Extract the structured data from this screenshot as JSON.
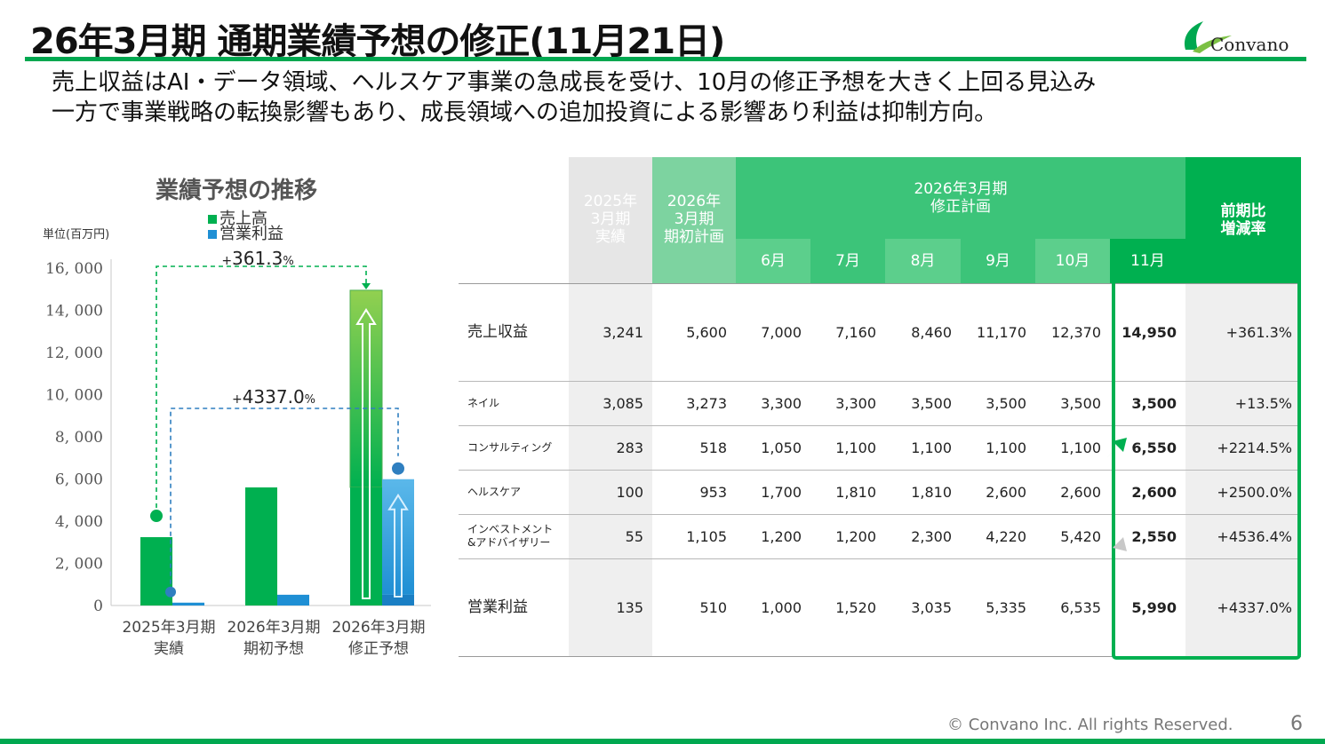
{
  "header": {
    "title": "26年3月期 通期業績予想の修正(11月21日)",
    "logo_text": "Convano"
  },
  "lead": {
    "line1": "売上収益はAI・データ領域、ヘルスケア事業の急成長を受け、10月の修正予想を大きく上回る見込み",
    "line2": "一方で事業戦略の転換影響もあり、成長領域への追加投資による影響あり利益は抑制方向。"
  },
  "chart_data": {
    "type": "bar",
    "title": "業績予想の推移",
    "unit_label": "単位(百万円)",
    "legend": [
      "売上高",
      "営業利益"
    ],
    "categories": [
      {
        "line1": "2025年3月期",
        "line2": "実績"
      },
      {
        "line1": "2026年3月期",
        "line2": "期初予想"
      },
      {
        "line1": "2026年3月期",
        "line2": "修正予想"
      }
    ],
    "series": [
      {
        "name": "売上高",
        "values": [
          3241,
          5600,
          14950
        ]
      },
      {
        "name": "営業利益",
        "values": [
          135,
          510,
          5990
        ]
      }
    ],
    "initial_portion": {
      "売上高": 5600,
      "営業利益": 510
    },
    "yticks": [
      "16, 000",
      "14, 000",
      "12, 000",
      "10, 000",
      "8, 000",
      "6, 000",
      "4, 000",
      "2, 000",
      "0"
    ],
    "ylim": [
      0,
      16000
    ],
    "annotations": {
      "revenue_growth_prefix": "+",
      "revenue_growth_value": "361.3",
      "revenue_growth_suffix": "%",
      "profit_growth_prefix": "+",
      "profit_growth_value": "4337.0",
      "profit_growth_suffix": "%"
    },
    "colors": {
      "revenue": "#00b050",
      "revenue_light": "#92d050",
      "profit": "#1f8fd4",
      "profit_light": "#5bb8ea",
      "revenue_connector": "#00b050",
      "profit_connector": "#2f7fc0"
    }
  },
  "table": {
    "header": {
      "actual_2025": "2025年\n3月期\n実績",
      "initial_2026": "2026年\n3月期\n期初計画",
      "revised_group": "2026年3月期\n修正計画",
      "months": [
        "6月",
        "7月",
        "8月",
        "9月",
        "10月",
        "11月"
      ],
      "yoy": "前期比\n増減率"
    },
    "rows": [
      {
        "label": "売上収益",
        "values": [
          "3,241",
          "5,600",
          "7,000",
          "7,160",
          "8,460",
          "11,170",
          "12,370",
          "14,950",
          "+361.3%"
        ]
      },
      {
        "label": "ネイル",
        "values": [
          "3,085",
          "3,273",
          "3,300",
          "3,300",
          "3,500",
          "3,500",
          "3,500",
          "3,500",
          "+13.5%"
        ]
      },
      {
        "label": "コンサルティング",
        "values": [
          "283",
          "518",
          "1,050",
          "1,100",
          "1,100",
          "1,100",
          "1,100",
          "6,550",
          "+2214.5%"
        ]
      },
      {
        "label": "ヘルスケア",
        "values": [
          "100",
          "953",
          "1,700",
          "1,810",
          "1,810",
          "2,600",
          "2,600",
          "2,600",
          "+2500.0%"
        ]
      },
      {
        "label": "インベストメント\n&アドバイザリー",
        "values": [
          "55",
          "1,105",
          "1,200",
          "1,200",
          "2,300",
          "4,220",
          "5,420",
          "2,550",
          "+4536.4%"
        ]
      },
      {
        "label": "営業利益",
        "values": [
          "135",
          "510",
          "1,000",
          "1,520",
          "3,035",
          "5,335",
          "6,535",
          "5,990",
          "+4337.0%"
        ]
      }
    ],
    "colors": {
      "actual_header": "#e6e6e6",
      "initial_header": "#7dd3a0",
      "group_header": "#3cc479",
      "month_even": "#5ccf8c",
      "month_odd": "#3cc479",
      "current_month": "#00b050",
      "highlight_border": "#00b050",
      "gray_col": "#efefef",
      "up_arrow": "#00b050",
      "down_arrow": "#c8c8c8"
    }
  },
  "footer": {
    "copyright": "© Convano Inc. All rights Reserved.",
    "page_number": "6"
  }
}
